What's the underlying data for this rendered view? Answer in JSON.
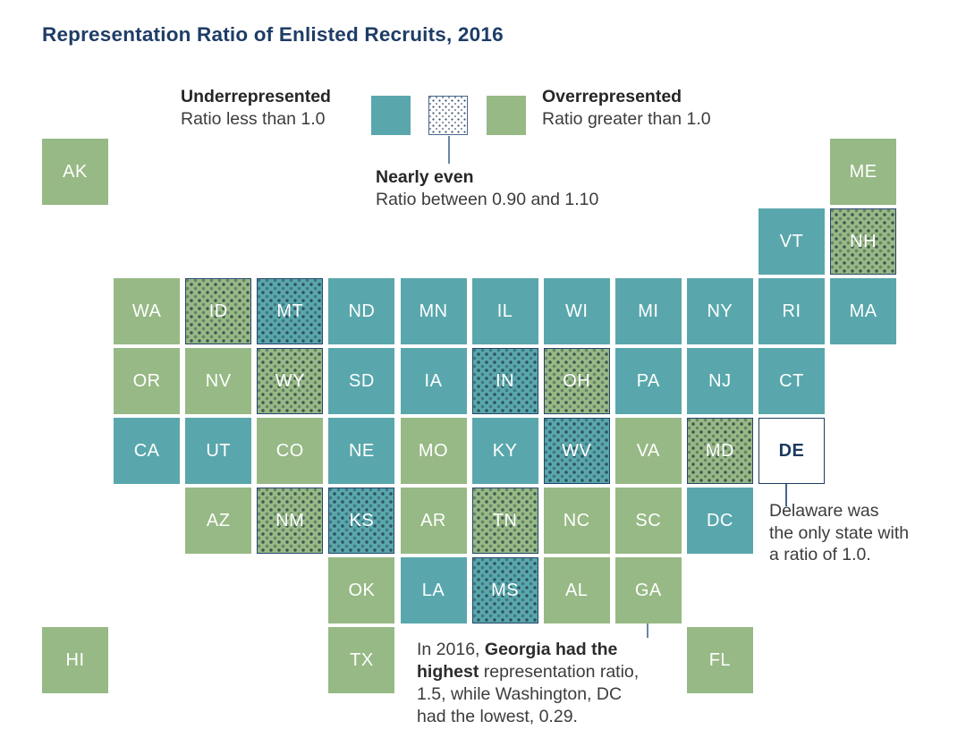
{
  "title": "Representation Ratio of Enlisted Recruits, 2016",
  "colors": {
    "underrepresented": "#59a7ac",
    "overrepresented": "#97b985",
    "nearly_even_dots": "#172938",
    "neutral_tile": "#ffffff",
    "navy": "#1d3a5f",
    "body_text": "#3c3c3c",
    "leader_line": "#6b85a5"
  },
  "legend": {
    "under": {
      "label": "Underrepresented",
      "sub": "Ratio less than 1.0"
    },
    "over": {
      "label": "Overrepresented",
      "sub": "Ratio greater than 1.0"
    },
    "even": {
      "label": "Nearly even",
      "sub": "Ratio between 0.90 and 1.10"
    }
  },
  "annotations": {
    "delaware": {
      "lines": [
        "Delaware was",
        "the only state with",
        "a ratio of 1.0."
      ]
    },
    "georgia": {
      "pre": "In 2016, ",
      "bold": "Georgia had the highest",
      "post": " representation ratio, 1.5, while Washington, DC had the lowest, 0.29."
    }
  },
  "chart_data": {
    "type": "heatmap",
    "subtype": "tile-cartogram",
    "title": "Representation Ratio of Enlisted Recruits, 2016",
    "legend_categories": [
      {
        "key": "under",
        "label": "Underrepresented",
        "rule": "Ratio less than 1.0"
      },
      {
        "key": "over",
        "label": "Overrepresented",
        "rule": "Ratio greater than 1.0"
      },
      {
        "key": "even",
        "label": "Nearly even",
        "rule": "Ratio between 0.90 and 1.10"
      }
    ],
    "known_values": {
      "DE": 1.0,
      "GA": 1.5,
      "DC": 0.29
    },
    "states": [
      {
        "abbr": "AK",
        "col": 1,
        "row": 1,
        "fill": "over",
        "dotted": false
      },
      {
        "abbr": "ME",
        "col": 12,
        "row": 1,
        "fill": "over",
        "dotted": false
      },
      {
        "abbr": "VT",
        "col": 11,
        "row": 2,
        "fill": "under",
        "dotted": false
      },
      {
        "abbr": "NH",
        "col": 12,
        "row": 2,
        "fill": "over",
        "dotted": true
      },
      {
        "abbr": "WA",
        "col": 2,
        "row": 3,
        "fill": "over",
        "dotted": false
      },
      {
        "abbr": "ID",
        "col": 3,
        "row": 3,
        "fill": "over",
        "dotted": true
      },
      {
        "abbr": "MT",
        "col": 4,
        "row": 3,
        "fill": "under",
        "dotted": true
      },
      {
        "abbr": "ND",
        "col": 5,
        "row": 3,
        "fill": "under",
        "dotted": false
      },
      {
        "abbr": "MN",
        "col": 6,
        "row": 3,
        "fill": "under",
        "dotted": false
      },
      {
        "abbr": "IL",
        "col": 7,
        "row": 3,
        "fill": "under",
        "dotted": false
      },
      {
        "abbr": "WI",
        "col": 8,
        "row": 3,
        "fill": "under",
        "dotted": false
      },
      {
        "abbr": "MI",
        "col": 9,
        "row": 3,
        "fill": "under",
        "dotted": false
      },
      {
        "abbr": "NY",
        "col": 10,
        "row": 3,
        "fill": "under",
        "dotted": false
      },
      {
        "abbr": "RI",
        "col": 11,
        "row": 3,
        "fill": "under",
        "dotted": false
      },
      {
        "abbr": "MA",
        "col": 12,
        "row": 3,
        "fill": "under",
        "dotted": false
      },
      {
        "abbr": "OR",
        "col": 2,
        "row": 4,
        "fill": "over",
        "dotted": false
      },
      {
        "abbr": "NV",
        "col": 3,
        "row": 4,
        "fill": "over",
        "dotted": false
      },
      {
        "abbr": "WY",
        "col": 4,
        "row": 4,
        "fill": "over",
        "dotted": true
      },
      {
        "abbr": "SD",
        "col": 5,
        "row": 4,
        "fill": "under",
        "dotted": false
      },
      {
        "abbr": "IA",
        "col": 6,
        "row": 4,
        "fill": "under",
        "dotted": false
      },
      {
        "abbr": "IN",
        "col": 7,
        "row": 4,
        "fill": "under",
        "dotted": true
      },
      {
        "abbr": "OH",
        "col": 8,
        "row": 4,
        "fill": "over",
        "dotted": true
      },
      {
        "abbr": "PA",
        "col": 9,
        "row": 4,
        "fill": "under",
        "dotted": false
      },
      {
        "abbr": "NJ",
        "col": 10,
        "row": 4,
        "fill": "under",
        "dotted": false
      },
      {
        "abbr": "CT",
        "col": 11,
        "row": 4,
        "fill": "under",
        "dotted": false
      },
      {
        "abbr": "CA",
        "col": 2,
        "row": 5,
        "fill": "under",
        "dotted": false
      },
      {
        "abbr": "UT",
        "col": 3,
        "row": 5,
        "fill": "under",
        "dotted": false
      },
      {
        "abbr": "CO",
        "col": 4,
        "row": 5,
        "fill": "over",
        "dotted": false
      },
      {
        "abbr": "NE",
        "col": 5,
        "row": 5,
        "fill": "under",
        "dotted": false
      },
      {
        "abbr": "MO",
        "col": 6,
        "row": 5,
        "fill": "over",
        "dotted": false
      },
      {
        "abbr": "KY",
        "col": 7,
        "row": 5,
        "fill": "under",
        "dotted": false
      },
      {
        "abbr": "WV",
        "col": 8,
        "row": 5,
        "fill": "under",
        "dotted": true
      },
      {
        "abbr": "VA",
        "col": 9,
        "row": 5,
        "fill": "over",
        "dotted": false
      },
      {
        "abbr": "MD",
        "col": 10,
        "row": 5,
        "fill": "over",
        "dotted": true
      },
      {
        "abbr": "DE",
        "col": 11,
        "row": 5,
        "fill": "white",
        "dotted": false
      },
      {
        "abbr": "AZ",
        "col": 3,
        "row": 6,
        "fill": "over",
        "dotted": false
      },
      {
        "abbr": "NM",
        "col": 4,
        "row": 6,
        "fill": "over",
        "dotted": true
      },
      {
        "abbr": "KS",
        "col": 5,
        "row": 6,
        "fill": "under",
        "dotted": true
      },
      {
        "abbr": "AR",
        "col": 6,
        "row": 6,
        "fill": "over",
        "dotted": false
      },
      {
        "abbr": "TN",
        "col": 7,
        "row": 6,
        "fill": "over",
        "dotted": true
      },
      {
        "abbr": "NC",
        "col": 8,
        "row": 6,
        "fill": "over",
        "dotted": false
      },
      {
        "abbr": "SC",
        "col": 9,
        "row": 6,
        "fill": "over",
        "dotted": false
      },
      {
        "abbr": "DC",
        "col": 10,
        "row": 6,
        "fill": "under",
        "dotted": false
      },
      {
        "abbr": "OK",
        "col": 5,
        "row": 7,
        "fill": "over",
        "dotted": false
      },
      {
        "abbr": "LA",
        "col": 6,
        "row": 7,
        "fill": "under",
        "dotted": false
      },
      {
        "abbr": "MS",
        "col": 7,
        "row": 7,
        "fill": "under",
        "dotted": true
      },
      {
        "abbr": "AL",
        "col": 8,
        "row": 7,
        "fill": "over",
        "dotted": false
      },
      {
        "abbr": "GA",
        "col": 9,
        "row": 7,
        "fill": "over",
        "dotted": false
      },
      {
        "abbr": "HI",
        "col": 1,
        "row": 8,
        "fill": "over",
        "dotted": false
      },
      {
        "abbr": "TX",
        "col": 5,
        "row": 8,
        "fill": "over",
        "dotted": false
      },
      {
        "abbr": "FL",
        "col": 10,
        "row": 8,
        "fill": "over",
        "dotted": false
      }
    ]
  }
}
